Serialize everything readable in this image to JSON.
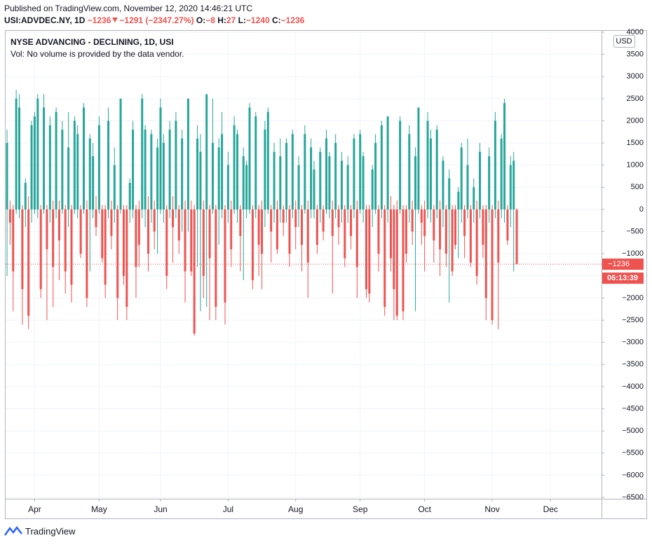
{
  "header": {
    "published": "Published on TradingView.com, November 12, 2020 14:46:21 UTC",
    "symbol": "USI:ADVDEC.NY, 1D",
    "last": "−1236",
    "change": "−1291 (−2347.27%)",
    "o_label": "O:",
    "o": "−8",
    "h_label": "H:",
    "h": "27",
    "l_label": "L:",
    "l": "−1240",
    "c_label": "C:",
    "c": "−1236",
    "legend_title": "NYSE ADVANCING - DECLINING, 1D, USI",
    "legend_vol": "Vol: No volume is provided by the data vendor.",
    "currency": "USD",
    "countdown": "06:13:39"
  },
  "footer": {
    "brand": "TradingView"
  },
  "chart_data": {
    "type": "candlestick",
    "up_color": "#26a69a",
    "down_color": "#ef5350",
    "grid": true,
    "ylim": [
      -6500,
      4000
    ],
    "yticks": [
      4000,
      3500,
      3000,
      2500,
      2000,
      1500,
      1000,
      500,
      0,
      {
        "value": -500,
        "label": "−500"
      },
      {
        "value": -1000,
        "label": "−1000"
      },
      {
        "value": -1500,
        "label": "−1500"
      },
      {
        "value": -2000,
        "label": "−2000"
      },
      {
        "value": -2500,
        "label": "−2500"
      },
      {
        "value": -3000,
        "label": "−3000"
      },
      {
        "value": -3500,
        "label": "−3500"
      },
      {
        "value": -4000,
        "label": "−4000"
      },
      {
        "value": -4500,
        "label": "−4500"
      },
      {
        "value": -5000,
        "label": "−5000"
      },
      {
        "value": -5500,
        "label": "−5500"
      },
      {
        "value": -6000,
        "label": "−6000"
      },
      {
        "value": -6500,
        "label": "−6500"
      }
    ],
    "last_price": {
      "value": -1236,
      "label": "−1236"
    },
    "categories": [
      null,
      null,
      null,
      null,
      null,
      null,
      null,
      null,
      null,
      "Apr",
      null,
      null,
      null,
      null,
      null,
      null,
      null,
      null,
      null,
      null,
      null,
      null,
      null,
      null,
      null,
      null,
      null,
      null,
      null,
      null,
      "May",
      null,
      null,
      null,
      null,
      null,
      null,
      null,
      null,
      null,
      null,
      null,
      null,
      null,
      null,
      null,
      null,
      null,
      null,
      null,
      "Jun",
      null,
      null,
      null,
      null,
      null,
      null,
      null,
      null,
      null,
      null,
      null,
      null,
      null,
      null,
      null,
      null,
      null,
      null,
      null,
      null,
      null,
      "Jul",
      null,
      null,
      null,
      null,
      null,
      null,
      null,
      null,
      null,
      null,
      null,
      null,
      null,
      null,
      null,
      null,
      null,
      null,
      null,
      null,
      null,
      "Aug",
      null,
      null,
      null,
      null,
      null,
      null,
      null,
      null,
      null,
      null,
      null,
      null,
      null,
      null,
      null,
      null,
      null,
      null,
      null,
      null,
      "Sep",
      null,
      null,
      null,
      null,
      null,
      null,
      null,
      null,
      null,
      null,
      null,
      null,
      null,
      null,
      null,
      null,
      null,
      null,
      null,
      null,
      "Oct",
      null,
      null,
      null,
      null,
      null,
      null,
      null,
      null,
      null,
      null,
      null,
      null,
      null,
      null,
      null,
      null,
      null,
      null,
      null,
      null,
      null,
      "Nov",
      null,
      null,
      null,
      null,
      null,
      null,
      null,
      null,
      null,
      null,
      null,
      null,
      null,
      null,
      null,
      null,
      null,
      null,
      "Dec"
    ],
    "open": [
      0,
      0,
      0,
      0,
      0,
      0,
      0,
      0,
      0,
      0,
      0,
      0,
      0,
      0,
      0,
      0,
      0,
      0,
      0,
      0,
      0,
      0,
      0,
      0,
      0,
      0,
      0,
      0,
      0,
      0,
      0,
      0,
      0,
      0,
      0,
      0,
      0,
      0,
      0,
      0,
      0,
      0,
      0,
      0,
      0,
      0,
      0,
      0,
      0,
      0,
      0,
      0,
      0,
      0,
      0,
      0,
      0,
      0,
      0,
      0,
      0,
      0,
      0,
      0,
      0,
      0,
      0,
      0,
      0,
      0,
      0,
      0,
      0,
      0,
      0,
      0,
      0,
      0,
      0,
      0,
      0,
      0,
      0,
      0,
      0,
      0,
      0,
      0,
      0,
      0,
      0,
      0,
      0,
      0,
      0,
      0,
      0,
      0,
      0,
      0,
      0,
      0,
      0,
      0,
      0,
      0,
      0,
      0,
      0,
      0,
      0,
      0,
      0,
      0,
      0,
      0,
      0,
      0,
      0,
      0,
      0,
      0,
      0,
      0,
      0,
      0,
      0,
      0,
      0,
      0,
      0,
      0,
      0,
      0,
      0,
      0,
      0,
      0,
      0,
      0,
      0,
      0,
      0,
      0,
      0,
      0,
      0,
      0,
      0,
      0,
      0,
      0,
      0,
      0,
      0,
      0,
      0,
      0,
      0,
      0,
      0,
      0,
      0,
      0,
      0,
      0,
      -8,
      null,
      null,
      null,
      null,
      null,
      null,
      null,
      null,
      null,
      null,
      null
    ],
    "high": [
      1800,
      200,
      100,
      2700,
      2600,
      100,
      700,
      300,
      2000,
      2200,
      2600,
      100,
      2600,
      100,
      2100,
      200,
      2300,
      200,
      2000,
      100,
      2200,
      100,
      2100,
      1900,
      100,
      2400,
      200,
      1700,
      1500,
      300,
      2100,
      100,
      100,
      2300,
      200,
      1400,
      100,
      2500,
      100,
      100,
      700,
      2000,
      100,
      200,
      2600,
      1900,
      300,
      1800,
      200,
      1600,
      2500,
      1700,
      100,
      2000,
      300,
      2200,
      100,
      1800,
      200,
      2500,
      200,
      100,
      1900,
      1700,
      200,
      2600,
      100,
      2500,
      100,
      1600,
      2200,
      100,
      1300,
      200,
      2100,
      1800,
      100,
      1400,
      1100,
      2400,
      100,
      2200,
      100,
      200,
      2000,
      2300,
      100,
      1500,
      200,
      1600,
      100,
      1600,
      100,
      1800,
      200,
      1200,
      100,
      1900,
      200,
      1600,
      1100,
      100,
      1400,
      100,
      1800,
      1300,
      200,
      1700,
      100,
      1300,
      100,
      1200,
      100,
      1700,
      200,
      1800,
      1300,
      100,
      100,
      1000,
      1700,
      100,
      2000,
      100,
      2000,
      300,
      100,
      200,
      2100,
      100,
      100,
      1900,
      200,
      1400,
      2300,
      100,
      200,
      2200,
      1800,
      100,
      1900,
      200,
      1200,
      100,
      900,
      100,
      100,
      500,
      1500,
      100,
      1600,
      100,
      700,
      200,
      1500,
      100,
      100,
      1400,
      100,
      2200,
      200,
      1700,
      2500,
      100,
      1200,
      1300,
      27,
      null,
      null,
      null,
      null,
      null,
      null,
      null,
      null,
      null,
      null,
      null
    ],
    "low": [
      -1500,
      -800,
      -2300,
      -100,
      -200,
      -2600,
      -400,
      -2700,
      -300,
      -100,
      -200,
      -2000,
      -100,
      -2500,
      -300,
      -2200,
      -200,
      -1600,
      -100,
      -1900,
      -400,
      -2100,
      -100,
      -200,
      -1100,
      -100,
      -2200,
      -1400,
      -200,
      -600,
      -100,
      -1200,
      -2000,
      -200,
      -900,
      -300,
      -2500,
      -100,
      -1700,
      -2500,
      -300,
      -200,
      -2000,
      -1300,
      -200,
      -400,
      -1400,
      -300,
      -900,
      -1000,
      -100,
      -300,
      -1800,
      -200,
      -1200,
      -200,
      -1000,
      -500,
      -2100,
      -500,
      -1500,
      -2850,
      -1300,
      -2300,
      -2000,
      -2200,
      -2500,
      -100,
      -2500,
      -800,
      -200,
      -2600,
      -300,
      -1300,
      -100,
      -300,
      -1400,
      -1600,
      -200,
      -100,
      -1800,
      -200,
      -1500,
      -1800,
      -400,
      -100,
      -1200,
      -300,
      -1000,
      -300,
      -600,
      -300,
      -1300,
      -200,
      -900,
      -400,
      -1400,
      -100,
      -2000,
      -200,
      -200,
      -1000,
      -300,
      -700,
      -100,
      -200,
      -1900,
      -200,
      -800,
      -300,
      -1300,
      -300,
      -900,
      -200,
      -2000,
      -100,
      -300,
      -2000,
      -2100,
      -400,
      -100,
      -1400,
      -200,
      -2400,
      -300,
      -1400,
      -2500,
      -2500,
      -100,
      -2500,
      -1200,
      -300,
      -800,
      -2300,
      -100,
      -800,
      -1400,
      -200,
      -300,
      -1200,
      -200,
      -1500,
      -400,
      -1300,
      -2100,
      -1500,
      -900,
      -1100,
      -300,
      -1100,
      -200,
      -1300,
      -300,
      -1700,
      -200,
      -1100,
      -2500,
      -300,
      -2600,
      -200,
      -2700,
      -200,
      -300,
      -800,
      -400,
      -1400,
      -1240,
      null,
      null,
      null,
      null,
      null,
      null,
      null,
      null,
      null,
      null,
      null
    ],
    "close": [
      1500,
      -300,
      -1400,
      2500,
      2300,
      -1800,
      600,
      -2400,
      1900,
      2100,
      2500,
      -1800,
      2300,
      -900,
      1900,
      -1300,
      2200,
      -700,
      1800,
      -1400,
      1400,
      -1700,
      2000,
      1700,
      -1000,
      2300,
      -2000,
      1600,
      1200,
      -400,
      1900,
      -1100,
      -1700,
      2000,
      -600,
      1000,
      -2000,
      2500,
      -1500,
      -2200,
      600,
      1800,
      -1300,
      -800,
      2500,
      1800,
      -1000,
      1700,
      -500,
      1400,
      2300,
      1500,
      -1500,
      1800,
      -400,
      2000,
      -700,
      1600,
      -1400,
      2500,
      -1400,
      -2800,
      1600,
      1300,
      -1500,
      2600,
      -1100,
      1500,
      -2200,
      1400,
      1700,
      -2100,
      1000,
      -900,
      1900,
      1700,
      -600,
      1200,
      1000,
      2300,
      -1600,
      2100,
      -800,
      -1000,
      1800,
      2200,
      -500,
      1300,
      -900,
      1200,
      -300,
      1500,
      -1000,
      1700,
      -400,
      1000,
      -800,
      1700,
      -1200,
      1400,
      900,
      -800,
      1300,
      -500,
      1600,
      1200,
      -600,
      1500,
      -400,
      1100,
      -1100,
      1000,
      -600,
      1600,
      -1300,
      1700,
      1200,
      -1800,
      -1900,
      900,
      1500,
      -1000,
      1900,
      -2200,
      2100,
      -1100,
      -1800,
      -2400,
      2000,
      -2300,
      -1000,
      1700,
      -500,
      1200,
      2300,
      -300,
      -600,
      2000,
      1600,
      -700,
      1800,
      -900,
      1100,
      -1000,
      700,
      -1400,
      -800,
      400,
      1400,
      -600,
      1000,
      -1200,
      500,
      -1500,
      1300,
      -800,
      -2000,
      1200,
      -2500,
      2000,
      -1200,
      1600,
      2400,
      -700,
      1000,
      1100,
      -1236,
      null,
      null,
      null,
      null,
      null,
      null,
      null,
      null,
      null,
      null,
      null
    ]
  }
}
